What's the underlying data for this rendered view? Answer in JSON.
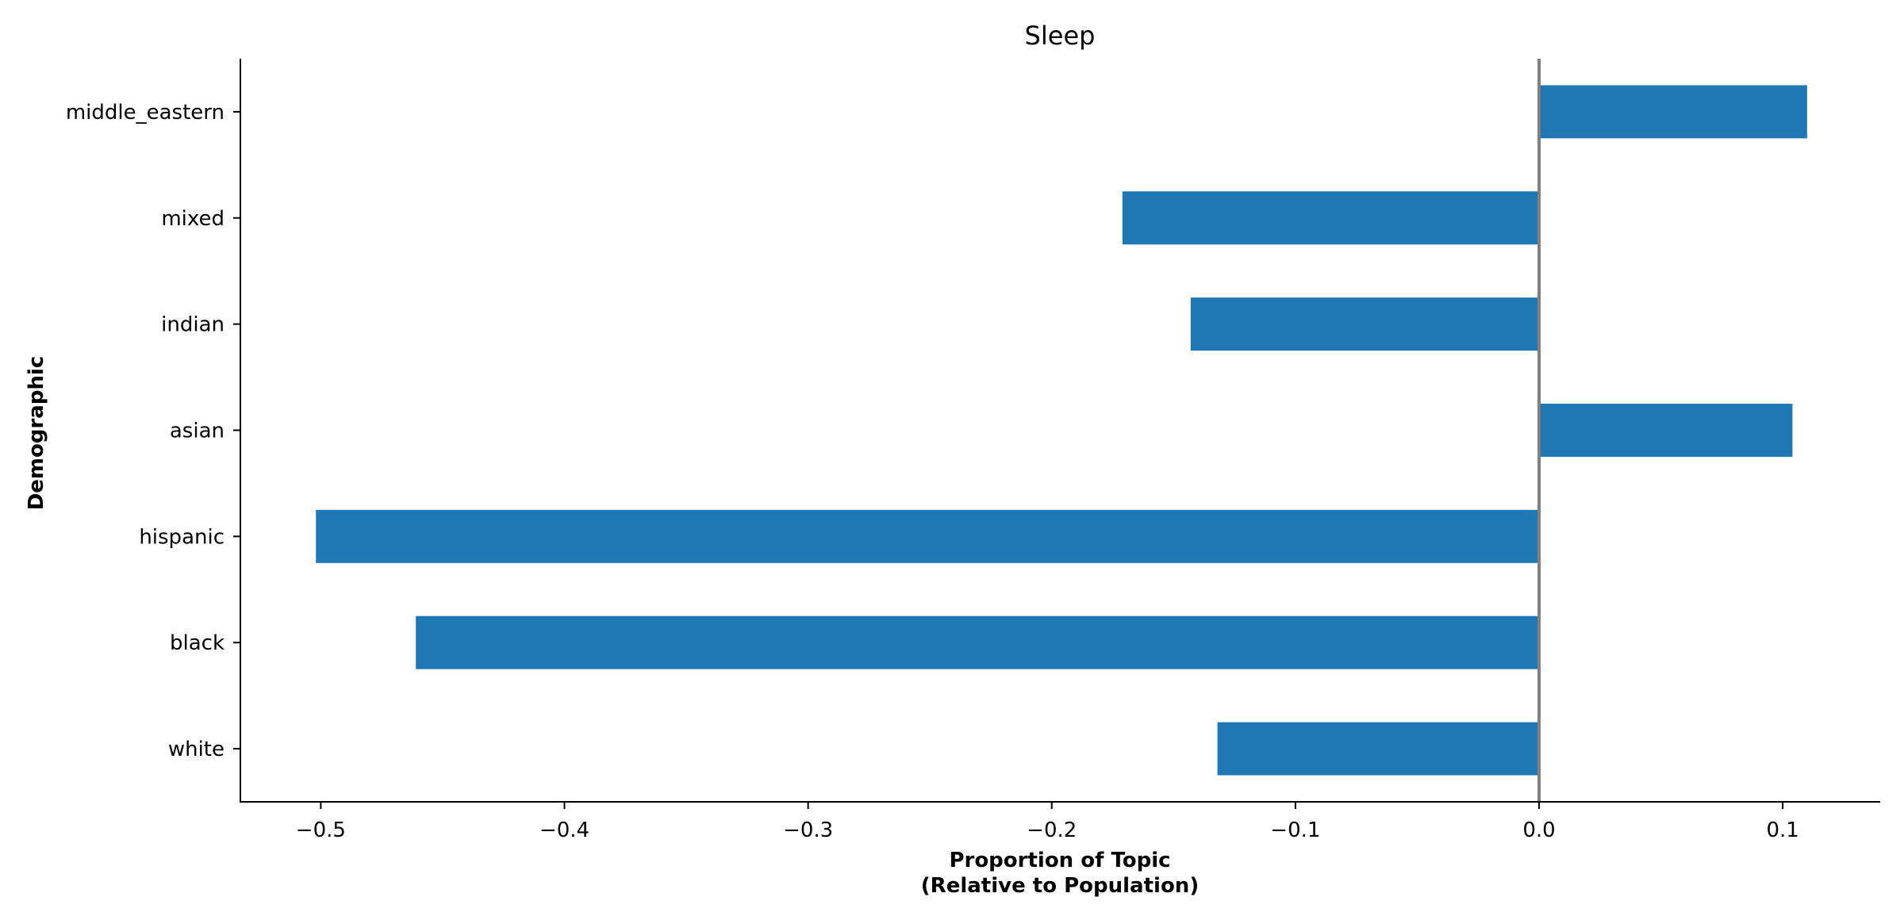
{
  "chart_data": {
    "type": "bar",
    "orientation": "horizontal",
    "title": "Sleep",
    "xlabel_line1": "Proportion of Topic",
    "xlabel_line2": "(Relative to Population)",
    "ylabel": "Demographic",
    "categories": [
      "white",
      "black",
      "hispanic",
      "asian",
      "indian",
      "mixed",
      "middle_eastern"
    ],
    "values": [
      -0.132,
      -0.461,
      -0.502,
      0.104,
      -0.143,
      -0.171,
      0.11
    ],
    "xlim": [
      -0.533,
      0.14
    ],
    "xticks": [
      -0.5,
      -0.4,
      -0.3,
      -0.2,
      -0.1,
      0.0,
      0.1
    ],
    "xtick_labels": [
      "−0.5",
      "−0.4",
      "−0.3",
      "−0.2",
      "−0.1",
      "0.0",
      "0.1"
    ],
    "reference_line": 0.0,
    "grid": false,
    "bar_color": "#1f77b4",
    "reference_line_color": "#808080"
  }
}
